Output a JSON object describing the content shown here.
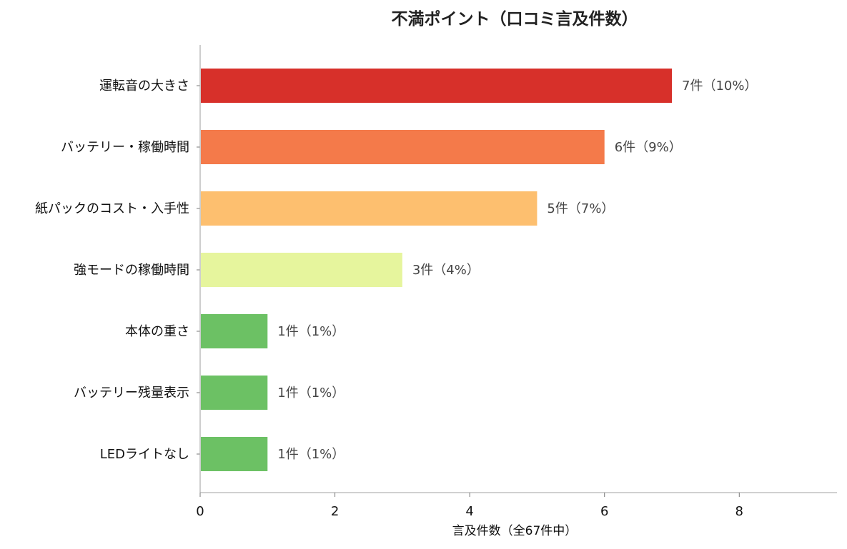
{
  "chart_data": {
    "type": "bar",
    "orientation": "horizontal",
    "title": "不満ポイント（口コミ言及件数）",
    "xlabel": "言及件数（全67件中）",
    "ylabel": "",
    "xlim": [
      0,
      9.45
    ],
    "xticks": [
      "0",
      "2",
      "4",
      "6",
      "8"
    ],
    "grid": false,
    "categories": [
      "運転音の大きさ",
      "バッテリー・稼働時間",
      "紙パックのコスト・入手性",
      "強モードの稼働時間",
      "本体の重さ",
      "バッテリー残量表示",
      "LEDライトなし"
    ],
    "values": [
      7,
      6,
      5,
      3,
      1,
      1,
      1
    ],
    "labels": [
      "7件（10%）",
      "6件（9%）",
      "5件（7%）",
      "3件（4%）",
      "1件（1%）",
      "1件（1%）",
      "1件（1%）"
    ],
    "colors": [
      "#d7302a",
      "#f47a4a",
      "#fdbf6f",
      "#e6f59d",
      "#6cc164",
      "#6cc164",
      "#6cc164"
    ]
  }
}
